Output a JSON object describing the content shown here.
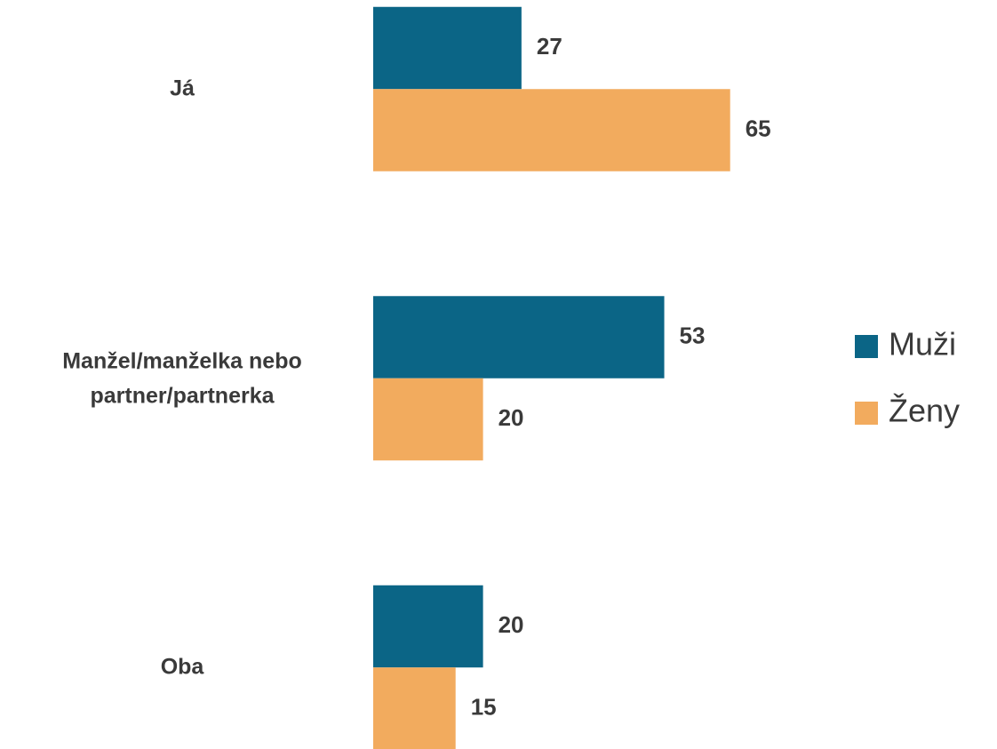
{
  "chart_data": {
    "type": "bar",
    "orientation": "horizontal",
    "categories": [
      "Já",
      "Manžel/manželka nebo partner/partnerka",
      "Oba"
    ],
    "series": [
      {
        "name": "Muži",
        "color": "#0b6586",
        "values": [
          27,
          53,
          20
        ]
      },
      {
        "name": "Ženy",
        "color": "#f2ab5e",
        "values": [
          65,
          20,
          15
        ]
      }
    ],
    "xlim": [
      0,
      100
    ],
    "legend": "right"
  }
}
